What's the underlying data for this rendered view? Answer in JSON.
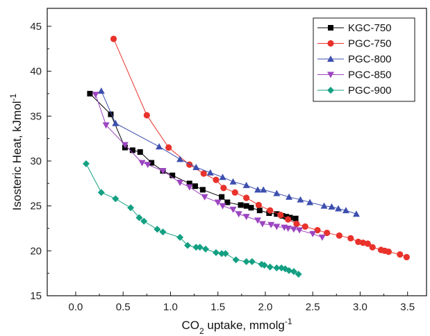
{
  "chart_data": {
    "type": "scatter",
    "title": "",
    "xlabel": "CO2 uptake, mmolg-1",
    "xlabel_parts": {
      "pre": "CO",
      "sub": "2",
      "mid": " uptake, mmolg",
      "sup": "-1"
    },
    "ylabel": "Isosteric Heat, kJmol-1",
    "ylabel_parts": {
      "pre": "Isosteric Heat, kJmol",
      "sup": "-1"
    },
    "xlim": [
      -0.3,
      3.7
    ],
    "ylim": [
      15,
      47
    ],
    "xticks": [
      "0.0",
      "0.5",
      "1.0",
      "1.5",
      "2.0",
      "2.5",
      "3.0",
      "3.5"
    ],
    "yticks": [
      "15",
      "20",
      "25",
      "30",
      "35",
      "40",
      "45"
    ],
    "grid": false,
    "legend_position": "top-right",
    "series": [
      {
        "name": "KGC-750",
        "color": "#000000",
        "marker": "square",
        "x": [
          0.15,
          0.37,
          0.52,
          0.6,
          0.68,
          0.8,
          0.92,
          1.02,
          1.2,
          1.26,
          1.34,
          1.54,
          1.6,
          1.74,
          1.8,
          1.85,
          1.94,
          2.04,
          2.12,
          2.18,
          2.22,
          2.26,
          2.32
        ],
        "y": [
          37.5,
          35.2,
          31.5,
          31.2,
          31.0,
          29.8,
          28.9,
          28.4,
          27.5,
          27.2,
          26.8,
          26.0,
          25.4,
          25.1,
          25.0,
          24.8,
          24.5,
          24.2,
          24.1,
          23.9,
          23.8,
          23.7,
          23.6
        ]
      },
      {
        "name": "PGC-750",
        "color": "#e8322b",
        "marker": "circle",
        "x": [
          0.4,
          0.75,
          0.98,
          1.2,
          1.35,
          1.48,
          1.56,
          1.68,
          1.8,
          1.93,
          2.05,
          2.16,
          2.24,
          2.33,
          2.42,
          2.55,
          2.65,
          2.78,
          2.9,
          2.98,
          3.03,
          3.08,
          3.13,
          3.22,
          3.26,
          3.3,
          3.42,
          3.49
        ],
        "y": [
          43.6,
          35.1,
          31.5,
          29.6,
          28.6,
          27.9,
          27.0,
          26.5,
          25.9,
          25.1,
          24.5,
          24.0,
          23.5,
          23.0,
          22.7,
          22.3,
          22.0,
          21.7,
          21.4,
          21.0,
          20.9,
          20.8,
          20.4,
          20.1,
          20.0,
          19.9,
          19.6,
          19.3
        ]
      },
      {
        "name": "PGC-800",
        "color": "#3d4fae",
        "marker": "triangle-up",
        "x": [
          0.27,
          0.42,
          0.88,
          1.1,
          1.27,
          1.42,
          1.55,
          1.66,
          1.8,
          1.92,
          1.98,
          2.12,
          2.25,
          2.37,
          2.47,
          2.62,
          2.7,
          2.77,
          2.85,
          2.96
        ],
        "y": [
          37.8,
          34.2,
          31.6,
          30.2,
          29.3,
          28.7,
          28.2,
          27.7,
          27.3,
          26.8,
          26.8,
          26.4,
          26.0,
          25.7,
          25.4,
          25.0,
          24.9,
          24.7,
          24.5,
          24.1
        ]
      },
      {
        "name": "PGC-850",
        "color": "#9c45c1",
        "marker": "triangle-down",
        "x": [
          0.21,
          0.32,
          0.52,
          0.7,
          0.76,
          0.92,
          1.1,
          1.2,
          1.36,
          1.5,
          1.55,
          1.66,
          1.72,
          1.8,
          1.92,
          1.97,
          2.06,
          2.12,
          2.2,
          2.24,
          2.3,
          2.36,
          2.5,
          2.6
        ],
        "y": [
          37.4,
          34.0,
          31.8,
          29.8,
          29.6,
          28.9,
          27.6,
          27.1,
          26.0,
          25.4,
          25.0,
          24.6,
          24.1,
          23.8,
          23.4,
          23.0,
          22.9,
          22.7,
          22.6,
          22.5,
          22.4,
          22.3,
          21.9,
          21.5
        ]
      },
      {
        "name": "PGC-900",
        "color": "#13a082",
        "marker": "diamond",
        "x": [
          0.11,
          0.27,
          0.42,
          0.58,
          0.67,
          0.72,
          0.86,
          0.92,
          1.1,
          1.18,
          1.27,
          1.31,
          1.37,
          1.48,
          1.54,
          1.58,
          1.69,
          1.8,
          1.86,
          1.96,
          1.99,
          2.05,
          2.12,
          2.17,
          2.21,
          2.25,
          2.3,
          2.35
        ],
        "y": [
          29.7,
          26.5,
          25.8,
          24.8,
          23.7,
          23.3,
          22.4,
          22.1,
          21.5,
          20.6,
          20.4,
          20.4,
          20.2,
          19.8,
          19.7,
          19.7,
          19.0,
          18.8,
          18.8,
          18.5,
          18.4,
          18.2,
          18.1,
          18.1,
          18.0,
          17.8,
          17.7,
          17.4
        ]
      }
    ]
  }
}
